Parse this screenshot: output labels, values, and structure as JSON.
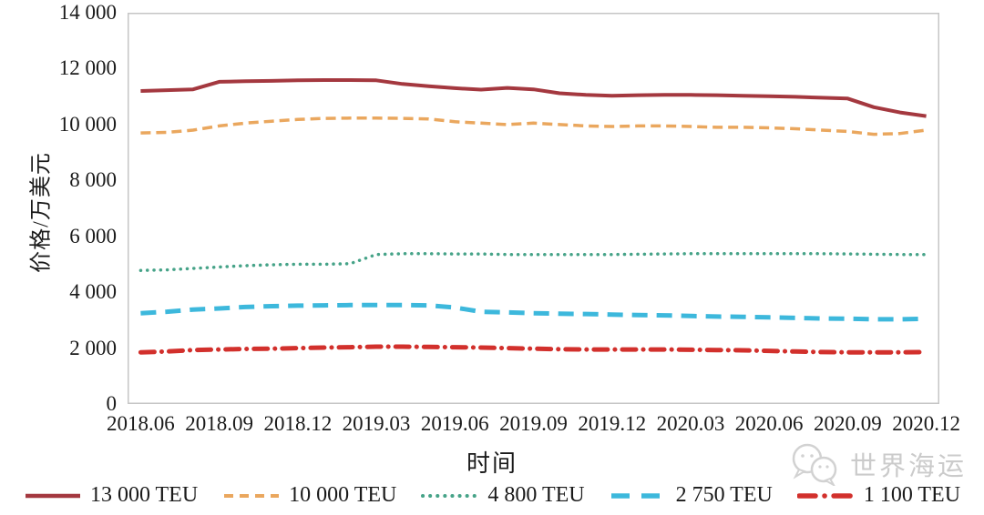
{
  "watermark": {
    "text": "世界海运"
  },
  "chart_data": {
    "type": "line",
    "title": "",
    "xlabel": "时间",
    "ylabel": "价格/万美元",
    "ylim": [
      0,
      14000
    ],
    "y_tick_step": 2000,
    "grid": false,
    "legend_position": "bottom",
    "axis_color": "#c6c6c6",
    "y_tick_labels": [
      "14 000",
      "12 000",
      "10 000",
      "8 000",
      "6 000",
      "4 000",
      "2 000",
      "0"
    ],
    "x_tick_labels": [
      "2018.06",
      "2018.09",
      "2018.12",
      "2019.03",
      "2019.06",
      "2019.09",
      "2019.12",
      "2020.03",
      "2020.06",
      "2020.09",
      "2020.12"
    ],
    "x": [
      "2018.06",
      "2018.07",
      "2018.08",
      "2018.09",
      "2018.10",
      "2018.11",
      "2018.12",
      "2019.01",
      "2019.02",
      "2019.03",
      "2019.04",
      "2019.05",
      "2019.06",
      "2019.07",
      "2019.08",
      "2019.09",
      "2019.10",
      "2019.11",
      "2019.12",
      "2020.01",
      "2020.02",
      "2020.03",
      "2020.04",
      "2020.05",
      "2020.06",
      "2020.07",
      "2020.08",
      "2020.09",
      "2020.10",
      "2020.11",
      "2020.12"
    ],
    "series": [
      {
        "name": "13 000 TEU",
        "color": "#a4383f",
        "style": "solid",
        "width": 4,
        "values": [
          11200,
          11230,
          11260,
          11530,
          11550,
          11560,
          11580,
          11590,
          11590,
          11580,
          11450,
          11370,
          11300,
          11250,
          11310,
          11260,
          11120,
          11060,
          11030,
          11050,
          11060,
          11060,
          11050,
          11030,
          11010,
          10990,
          10960,
          10930,
          10620,
          10430,
          10300
        ]
      },
      {
        "name": "10 000 TEU",
        "color": "#eaa75e",
        "style": "dashed-small",
        "width": 3.5,
        "values": [
          9700,
          9720,
          9800,
          9950,
          10050,
          10120,
          10180,
          10220,
          10230,
          10230,
          10220,
          10200,
          10100,
          10050,
          10000,
          10050,
          10000,
          9950,
          9930,
          9950,
          9950,
          9930,
          9900,
          9900,
          9880,
          9850,
          9800,
          9750,
          9650,
          9680,
          9800
        ]
      },
      {
        "name": "4 800 TEU",
        "color": "#46a388",
        "style": "dotted",
        "width": 3.5,
        "values": [
          4780,
          4800,
          4850,
          4900,
          4950,
          4980,
          5000,
          5000,
          5020,
          5350,
          5380,
          5380,
          5370,
          5370,
          5350,
          5350,
          5350,
          5350,
          5350,
          5360,
          5370,
          5380,
          5380,
          5380,
          5380,
          5380,
          5380,
          5370,
          5360,
          5350,
          5350
        ]
      },
      {
        "name": "2 750 TEU",
        "color": "#3db8dc",
        "style": "dashed-large",
        "width": 5,
        "values": [
          3250,
          3300,
          3380,
          3420,
          3470,
          3500,
          3520,
          3530,
          3540,
          3540,
          3540,
          3530,
          3450,
          3300,
          3280,
          3250,
          3230,
          3220,
          3200,
          3180,
          3170,
          3150,
          3130,
          3120,
          3100,
          3080,
          3060,
          3050,
          3030,
          3030,
          3050
        ]
      },
      {
        "name": "1 100 TEU",
        "color": "#d2302c",
        "style": "dash-dot",
        "width": 5,
        "values": [
          1850,
          1880,
          1930,
          1950,
          1970,
          1980,
          2000,
          2020,
          2030,
          2050,
          2050,
          2040,
          2030,
          2020,
          2000,
          1980,
          1960,
          1950,
          1950,
          1950,
          1950,
          1940,
          1930,
          1920,
          1900,
          1880,
          1860,
          1850,
          1850,
          1850,
          1860
        ]
      }
    ]
  }
}
